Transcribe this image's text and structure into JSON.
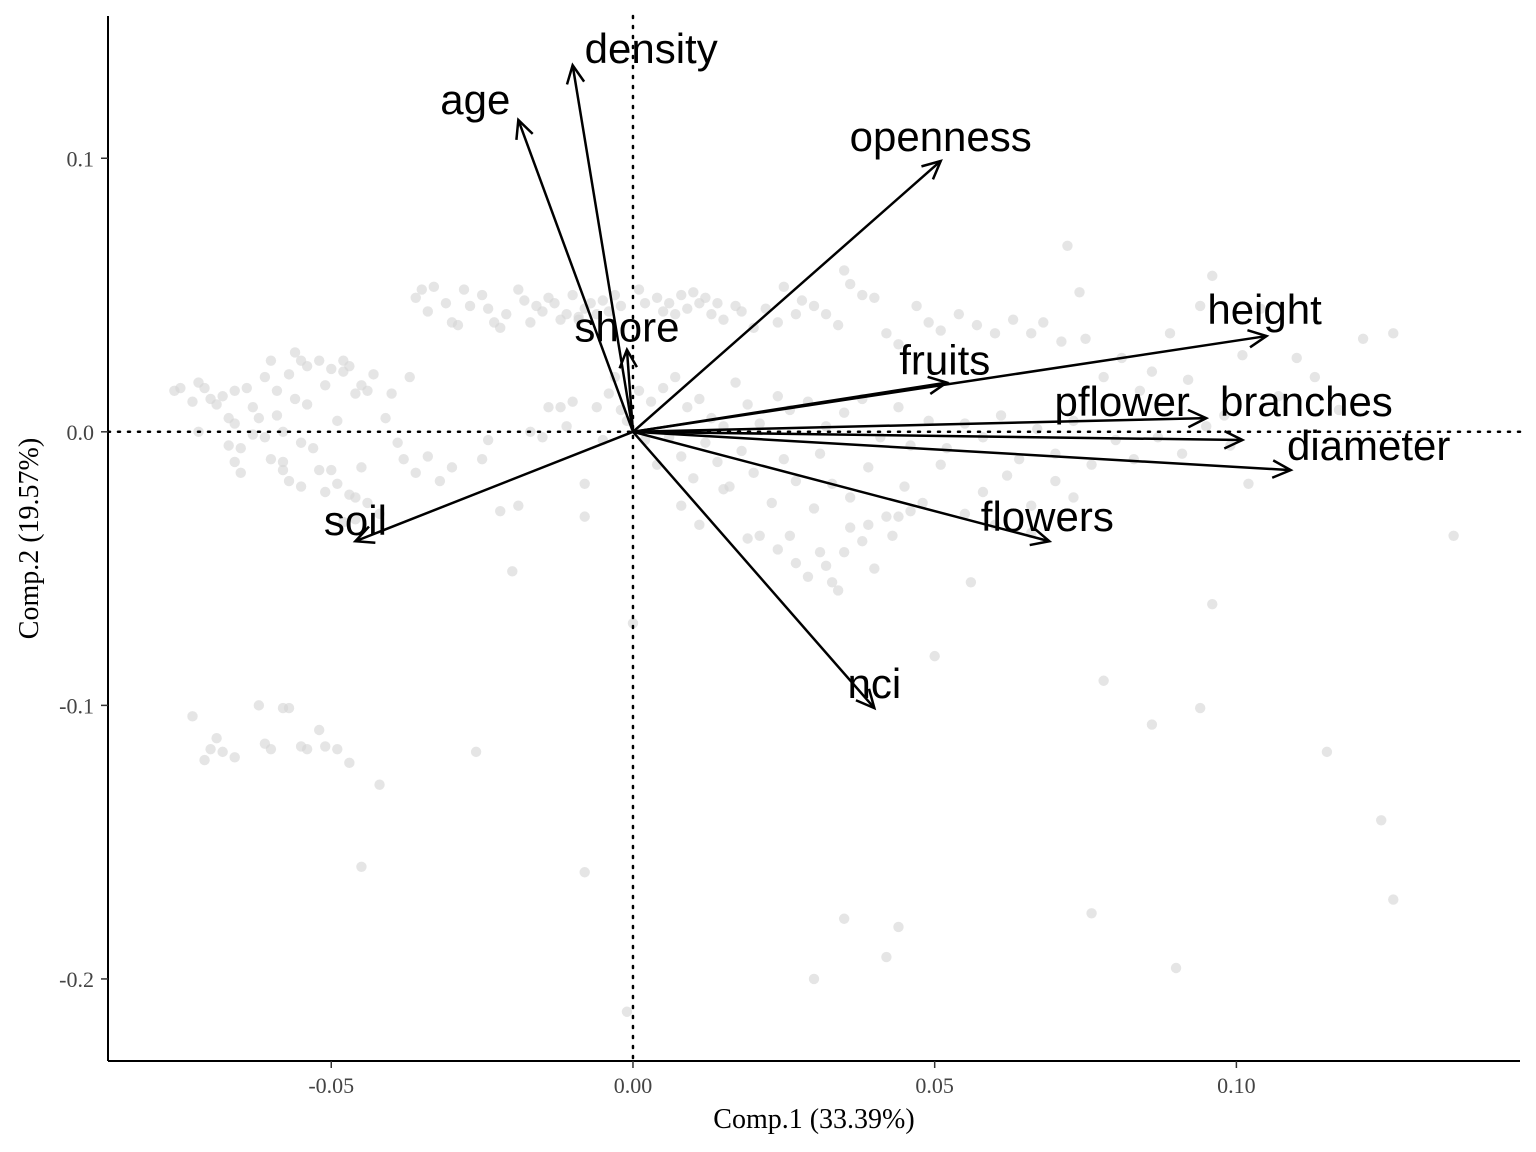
{
  "chart_data": {
    "type": "scatter",
    "subtype": "pca-biplot",
    "xlabel": "Comp.1 (33.39%)",
    "ylabel": "Comp.2 (19.57%)",
    "xlim": [
      -0.087,
      0.147
    ],
    "ylim": [
      -0.23,
      0.152
    ],
    "x_ticks": [
      {
        "value": -0.05,
        "label": "-0.05"
      },
      {
        "value": 0.0,
        "label": "0.00"
      },
      {
        "value": 0.05,
        "label": "0.05"
      },
      {
        "value": 0.1,
        "label": "0.10"
      }
    ],
    "y_ticks": [
      {
        "value": 0.1,
        "label": "0.1"
      },
      {
        "value": 0.0,
        "label": "0.0"
      },
      {
        "value": -0.1,
        "label": "-0.1"
      },
      {
        "value": -0.2,
        "label": "-0.2"
      }
    ],
    "reference_lines": {
      "x": 0,
      "y": 0,
      "style": "dotted"
    },
    "grid": false,
    "legend": "none",
    "point_color": "#d3d3d3",
    "arrow_color": "#000000",
    "loadings": [
      {
        "name": "density",
        "x": -0.01,
        "y": 0.134
      },
      {
        "name": "age",
        "x": -0.019,
        "y": 0.114
      },
      {
        "name": "openness",
        "x": 0.051,
        "y": 0.099
      },
      {
        "name": "shore",
        "x": -0.001,
        "y": 0.03
      },
      {
        "name": "height",
        "x": 0.105,
        "y": 0.035
      },
      {
        "name": "fruits",
        "x": 0.052,
        "y": 0.018
      },
      {
        "name": "branches",
        "x": 0.101,
        "y": -0.003
      },
      {
        "name": "pflower",
        "x": 0.095,
        "y": 0.005
      },
      {
        "name": "diameter",
        "x": 0.109,
        "y": -0.014
      },
      {
        "name": "flowers",
        "x": 0.069,
        "y": -0.04
      },
      {
        "name": "soil",
        "x": -0.046,
        "y": -0.04
      },
      {
        "name": "nci",
        "x": 0.04,
        "y": -0.101
      }
    ],
    "scores": [
      [
        -0.076,
        0.015
      ],
      [
        -0.075,
        0.016
      ],
      [
        -0.073,
        0.011
      ],
      [
        -0.072,
        0.018
      ],
      [
        -0.071,
        0.016
      ],
      [
        -0.07,
        0.012
      ],
      [
        -0.069,
        0.01
      ],
      [
        -0.068,
        0.013
      ],
      [
        -0.067,
        0.005
      ],
      [
        -0.066,
        0.015
      ],
      [
        -0.066,
        0.003
      ],
      [
        -0.065,
        -0.006
      ],
      [
        -0.065,
        -0.015
      ],
      [
        -0.064,
        0.016
      ],
      [
        -0.063,
        0.009
      ],
      [
        -0.062,
        0.005
      ],
      [
        -0.061,
        0.02
      ],
      [
        -0.06,
        0.026
      ],
      [
        -0.06,
        -0.01
      ],
      [
        -0.059,
        0.015
      ],
      [
        -0.059,
        0.006
      ],
      [
        -0.058,
        0.0
      ],
      [
        -0.058,
        -0.014
      ],
      [
        -0.057,
        0.021
      ],
      [
        -0.057,
        -0.018
      ],
      [
        -0.056,
        0.029
      ],
      [
        -0.056,
        0.012
      ],
      [
        -0.055,
        0.026
      ],
      [
        -0.055,
        -0.004
      ],
      [
        -0.055,
        -0.02
      ],
      [
        -0.054,
        0.024
      ],
      [
        -0.054,
        0.01
      ],
      [
        -0.053,
        -0.006
      ],
      [
        -0.052,
        0.026
      ],
      [
        -0.052,
        -0.014
      ],
      [
        -0.051,
        0.017
      ],
      [
        -0.051,
        -0.022
      ],
      [
        -0.05,
        0.023
      ],
      [
        -0.05,
        -0.014
      ],
      [
        -0.049,
        0.004
      ],
      [
        -0.049,
        -0.019
      ],
      [
        -0.048,
        0.026
      ],
      [
        -0.048,
        0.022
      ],
      [
        -0.047,
        0.024
      ],
      [
        -0.047,
        -0.023
      ],
      [
        -0.046,
        0.014
      ],
      [
        -0.046,
        -0.024
      ],
      [
        -0.045,
        0.017
      ],
      [
        -0.045,
        -0.013
      ],
      [
        -0.044,
        0.015
      ],
      [
        -0.044,
        -0.026
      ],
      [
        -0.043,
        0.021
      ],
      [
        -0.042,
        -0.03
      ],
      [
        -0.041,
        0.005
      ],
      [
        -0.04,
        0.014
      ],
      [
        -0.039,
        -0.004
      ],
      [
        -0.038,
        -0.01
      ],
      [
        -0.037,
        0.02
      ],
      [
        -0.036,
        0.049
      ],
      [
        -0.035,
        0.052
      ],
      [
        -0.034,
        0.044
      ],
      [
        -0.033,
        0.053
      ],
      [
        -0.031,
        0.047
      ],
      [
        -0.03,
        0.04
      ],
      [
        -0.029,
        0.039
      ],
      [
        -0.028,
        0.052
      ],
      [
        -0.027,
        0.046
      ],
      [
        -0.025,
        0.05
      ],
      [
        -0.024,
        0.045
      ],
      [
        -0.023,
        0.04
      ],
      [
        -0.022,
        0.038
      ],
      [
        -0.021,
        0.043
      ],
      [
        -0.019,
        0.052
      ],
      [
        -0.018,
        0.048
      ],
      [
        -0.017,
        0.04
      ],
      [
        -0.016,
        0.046
      ],
      [
        -0.015,
        0.044
      ],
      [
        -0.014,
        0.049
      ],
      [
        -0.013,
        0.047
      ],
      [
        -0.012,
        0.041
      ],
      [
        -0.011,
        0.043
      ],
      [
        -0.01,
        0.05
      ],
      [
        -0.009,
        0.041
      ],
      [
        -0.008,
        0.045
      ],
      [
        -0.007,
        0.047
      ],
      [
        -0.006,
        0.043
      ],
      [
        -0.005,
        0.048
      ],
      [
        -0.004,
        0.044
      ],
      [
        -0.003,
        0.05
      ],
      [
        -0.002,
        0.046
      ],
      [
        0.001,
        0.052
      ],
      [
        0.002,
        0.047
      ],
      [
        0.004,
        0.049
      ],
      [
        0.005,
        0.044
      ],
      [
        0.006,
        0.047
      ],
      [
        0.007,
        0.043
      ],
      [
        0.008,
        0.05
      ],
      [
        0.009,
        0.045
      ],
      [
        0.01,
        0.051
      ],
      [
        0.011,
        0.047
      ],
      [
        0.012,
        0.049
      ],
      [
        0.013,
        0.043
      ],
      [
        0.014,
        0.047
      ],
      [
        0.015,
        0.041
      ],
      [
        0.017,
        0.046
      ],
      [
        0.018,
        0.044
      ],
      [
        0.02,
        0.038
      ],
      [
        0.022,
        0.045
      ],
      [
        0.024,
        0.04
      ],
      [
        0.025,
        0.053
      ],
      [
        0.027,
        0.043
      ],
      [
        0.028,
        0.048
      ],
      [
        0.03,
        0.046
      ],
      [
        0.032,
        0.043
      ],
      [
        0.034,
        0.039
      ],
      [
        0.035,
        0.059
      ],
      [
        0.036,
        0.054
      ],
      [
        0.038,
        0.05
      ],
      [
        0.04,
        0.049
      ],
      [
        0.042,
        0.036
      ],
      [
        0.044,
        0.032
      ],
      [
        0.047,
        0.046
      ],
      [
        0.049,
        0.04
      ],
      [
        0.051,
        0.037
      ],
      [
        0.054,
        0.043
      ],
      [
        0.057,
        0.039
      ],
      [
        0.06,
        0.036
      ],
      [
        0.063,
        0.041
      ],
      [
        0.066,
        0.036
      ],
      [
        0.068,
        0.04
      ],
      [
        0.071,
        0.033
      ],
      [
        0.074,
        0.051
      ],
      [
        0.072,
        0.068
      ],
      [
        0.075,
        0.034
      ],
      [
        0.078,
        0.02
      ],
      [
        0.081,
        0.027
      ],
      [
        0.084,
        0.015
      ],
      [
        0.086,
        0.022
      ],
      [
        0.089,
        0.036
      ],
      [
        0.092,
        0.019
      ],
      [
        0.094,
        0.046
      ],
      [
        0.096,
        0.057
      ],
      [
        0.098,
        0.006
      ],
      [
        0.101,
        0.028
      ],
      [
        0.104,
        0.045
      ],
      [
        0.107,
        0.013
      ],
      [
        0.11,
        0.027
      ],
      [
        0.113,
        0.02
      ],
      [
        0.117,
        0.008
      ],
      [
        0.121,
        0.034
      ],
      [
        0.126,
        0.036
      ],
      [
        -0.006,
        0.009
      ],
      [
        -0.005,
        -0.003
      ],
      [
        -0.004,
        0.014
      ],
      [
        -0.003,
        0.02
      ],
      [
        -0.002,
        0.008
      ],
      [
        -0.001,
        0.004
      ],
      [
        0.001,
        0.015
      ],
      [
        0.003,
        0.011
      ],
      [
        0.005,
        0.016
      ],
      [
        0.007,
        0.02
      ],
      [
        0.009,
        0.009
      ],
      [
        0.011,
        0.012
      ],
      [
        0.013,
        0.005
      ],
      [
        0.015,
        0.002
      ],
      [
        0.017,
        0.018
      ],
      [
        0.019,
        0.01
      ],
      [
        0.021,
        0.003
      ],
      [
        0.024,
        0.013
      ],
      [
        0.026,
        0.008
      ],
      [
        0.029,
        0.011
      ],
      [
        0.032,
        0.002
      ],
      [
        0.035,
        0.007
      ],
      [
        0.038,
        0.012
      ],
      [
        0.041,
        -0.002
      ],
      [
        0.044,
        0.009
      ],
      [
        0.046,
        -0.005
      ],
      [
        0.049,
        0.004
      ],
      [
        0.052,
        -0.006
      ],
      [
        0.055,
        0.003
      ],
      [
        0.058,
        -0.002
      ],
      [
        0.061,
        0.006
      ],
      [
        0.064,
        -0.01
      ],
      [
        0.067,
        0.001
      ],
      [
        0.07,
        -0.008
      ],
      [
        0.073,
        0.004
      ],
      [
        0.076,
        -0.012
      ],
      [
        0.08,
        -0.003
      ],
      [
        0.083,
        -0.01
      ],
      [
        0.087,
        -0.002
      ],
      [
        0.091,
        -0.008
      ],
      [
        0.095,
        0.002
      ],
      [
        0.099,
        -0.005
      ],
      [
        0.002,
        -0.003
      ],
      [
        0.004,
        -0.012
      ],
      [
        0.006,
        -0.002
      ],
      [
        0.008,
        -0.009
      ],
      [
        0.01,
        -0.017
      ],
      [
        0.012,
        -0.004
      ],
      [
        0.014,
        -0.011
      ],
      [
        0.016,
        -0.02
      ],
      [
        0.018,
        -0.007
      ],
      [
        0.02,
        -0.015
      ],
      [
        0.023,
        -0.026
      ],
      [
        0.025,
        -0.01
      ],
      [
        0.027,
        -0.018
      ],
      [
        0.03,
        -0.028
      ],
      [
        0.031,
        -0.008
      ],
      [
        0.033,
        -0.019
      ],
      [
        0.036,
        -0.024
      ],
      [
        0.039,
        -0.013
      ],
      [
        0.042,
        -0.031
      ],
      [
        0.045,
        -0.02
      ],
      [
        0.048,
        -0.026
      ],
      [
        0.051,
        -0.012
      ],
      [
        0.055,
        -0.03
      ],
      [
        0.058,
        -0.022
      ],
      [
        0.062,
        -0.016
      ],
      [
        0.066,
        -0.027
      ],
      [
        0.07,
        -0.018
      ],
      [
        0.073,
        -0.024
      ],
      [
        0.008,
        -0.027
      ],
      [
        0.011,
        -0.034
      ],
      [
        0.015,
        -0.021
      ],
      [
        0.019,
        -0.039
      ],
      [
        0.021,
        -0.038
      ],
      [
        0.024,
        -0.043
      ],
      [
        0.026,
        -0.038
      ],
      [
        0.027,
        -0.048
      ],
      [
        0.029,
        -0.053
      ],
      [
        0.031,
        -0.044
      ],
      [
        0.032,
        -0.049
      ],
      [
        0.033,
        -0.055
      ],
      [
        0.034,
        -0.058
      ],
      [
        0.035,
        -0.044
      ],
      [
        0.036,
        -0.035
      ],
      [
        0.038,
        -0.04
      ],
      [
        0.039,
        -0.034
      ],
      [
        0.04,
        -0.05
      ],
      [
        0.043,
        -0.038
      ],
      [
        0.044,
        -0.031
      ],
      [
        0.046,
        -0.029
      ],
      [
        0.05,
        -0.082
      ],
      [
        0.056,
        -0.055
      ],
      [
        0.06,
        -0.034
      ],
      [
        0.066,
        -0.037
      ],
      [
        0.078,
        -0.091
      ],
      [
        0.086,
        -0.107
      ],
      [
        0.094,
        -0.101
      ],
      [
        0.096,
        -0.063
      ],
      [
        0.102,
        -0.019
      ],
      [
        0.115,
        -0.117
      ],
      [
        0.124,
        -0.142
      ],
      [
        0.126,
        -0.171
      ],
      [
        0.136,
        -0.038
      ],
      [
        0.076,
        -0.176
      ],
      [
        0.09,
        -0.196
      ],
      [
        0.044,
        -0.181
      ],
      [
        0.042,
        -0.192
      ],
      [
        0.035,
        -0.178
      ],
      [
        0.03,
        -0.2
      ],
      [
        0.0,
        -0.07
      ],
      [
        -0.008,
        -0.161
      ],
      [
        -0.001,
        -0.212
      ],
      [
        -0.008,
        -0.019
      ],
      [
        -0.008,
        -0.031
      ],
      [
        -0.009,
        0.042
      ],
      [
        -0.01,
        0.011
      ],
      [
        -0.011,
        0.002
      ],
      [
        -0.012,
        0.009
      ],
      [
        -0.014,
        0.009
      ],
      [
        -0.015,
        -0.002
      ],
      [
        -0.017,
        0.0
      ],
      [
        -0.019,
        -0.027
      ],
      [
        -0.02,
        -0.051
      ],
      [
        -0.022,
        -0.029
      ],
      [
        -0.024,
        -0.003
      ],
      [
        -0.025,
        -0.01
      ],
      [
        -0.026,
        -0.117
      ],
      [
        -0.03,
        -0.013
      ],
      [
        -0.032,
        -0.018
      ],
      [
        -0.034,
        -0.009
      ],
      [
        -0.036,
        -0.015
      ],
      [
        -0.042,
        -0.129
      ],
      [
        -0.045,
        -0.159
      ],
      [
        -0.046,
        -0.032
      ],
      [
        -0.048,
        -0.033
      ],
      [
        -0.047,
        -0.121
      ],
      [
        -0.049,
        -0.116
      ],
      [
        -0.051,
        -0.115
      ],
      [
        -0.052,
        -0.109
      ],
      [
        -0.054,
        -0.116
      ],
      [
        -0.055,
        -0.115
      ],
      [
        -0.057,
        -0.101
      ],
      [
        -0.058,
        -0.101
      ],
      [
        -0.06,
        -0.116
      ],
      [
        -0.061,
        -0.114
      ],
      [
        -0.062,
        -0.1
      ],
      [
        -0.066,
        -0.119
      ],
      [
        -0.068,
        -0.117
      ],
      [
        -0.069,
        -0.112
      ],
      [
        -0.07,
        -0.116
      ],
      [
        -0.071,
        -0.12
      ],
      [
        -0.073,
        -0.104
      ],
      [
        -0.072,
        0.0
      ],
      [
        -0.067,
        -0.005
      ],
      [
        -0.066,
        -0.011
      ],
      [
        -0.063,
        -0.001
      ],
      [
        -0.061,
        -0.002
      ],
      [
        -0.058,
        -0.011
      ]
    ]
  }
}
